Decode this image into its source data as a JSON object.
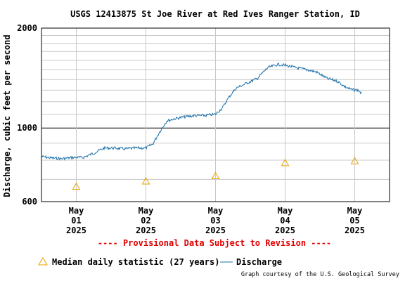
{
  "chart_data": {
    "type": "line",
    "title": "USGS 12413875 St Joe River at Red Ives Ranger Station, ID",
    "ylabel": "Discharge, cubic feet per second",
    "xlabel": "",
    "y_scale": "log",
    "ylim": [
      600,
      2000
    ],
    "y_ticks": [
      {
        "value": 600,
        "label": "600"
      },
      {
        "value": 1000,
        "label": "1000"
      },
      {
        "value": 2000,
        "label": "2000"
      }
    ],
    "y_minor_gridlines": [
      700,
      800,
      900,
      1100,
      1200,
      1300,
      1400,
      1500,
      1600,
      1700,
      1800,
      1900
    ],
    "x_ticks": [
      {
        "day": 1,
        "month": "May",
        "daynum": "01",
        "year": "2025"
      },
      {
        "day": 2,
        "month": "May",
        "daynum": "02",
        "year": "2025"
      },
      {
        "day": 3,
        "month": "May",
        "daynum": "03",
        "year": "2025"
      },
      {
        "day": 4,
        "month": "May",
        "daynum": "04",
        "year": "2025"
      },
      {
        "day": 5,
        "month": "May",
        "daynum": "05",
        "year": "2025"
      }
    ],
    "xlim_days": [
      0.5,
      5.5
    ],
    "grid": true,
    "legend_position": "bottom",
    "provisional_note": "---- Provisional Data Subject to Revision ----",
    "credit": "Graph courtesy of the U.S. Geological Survey",
    "series": [
      {
        "name": "Median daily statistic (27 years)",
        "kind": "marker",
        "color": "#e8a000",
        "x_day": [
          1,
          2,
          3,
          4,
          5
        ],
        "values": [
          666,
          691,
          717,
          785,
          795
        ]
      },
      {
        "name": "Discharge",
        "kind": "line",
        "color": "#1a6fa8",
        "x_day": [
          0.5,
          0.65,
          0.8,
          0.95,
          1.1,
          1.25,
          1.4,
          1.55,
          1.7,
          1.85,
          2.0,
          2.1,
          2.2,
          2.3,
          2.4,
          2.55,
          2.7,
          2.85,
          3.0,
          3.1,
          3.2,
          3.3,
          3.45,
          3.6,
          3.75,
          3.9,
          4.0,
          4.15,
          4.3,
          4.45,
          4.6,
          4.75,
          4.85,
          4.95,
          5.05,
          5.1
        ],
        "values": [
          820,
          812,
          808,
          815,
          815,
          840,
          870,
          870,
          865,
          870,
          870,
          895,
          975,
          1050,
          1065,
          1080,
          1090,
          1090,
          1100,
          1150,
          1245,
          1320,
          1365,
          1410,
          1520,
          1555,
          1545,
          1520,
          1500,
          1475,
          1410,
          1385,
          1335,
          1305,
          1300,
          1270
        ]
      }
    ]
  }
}
